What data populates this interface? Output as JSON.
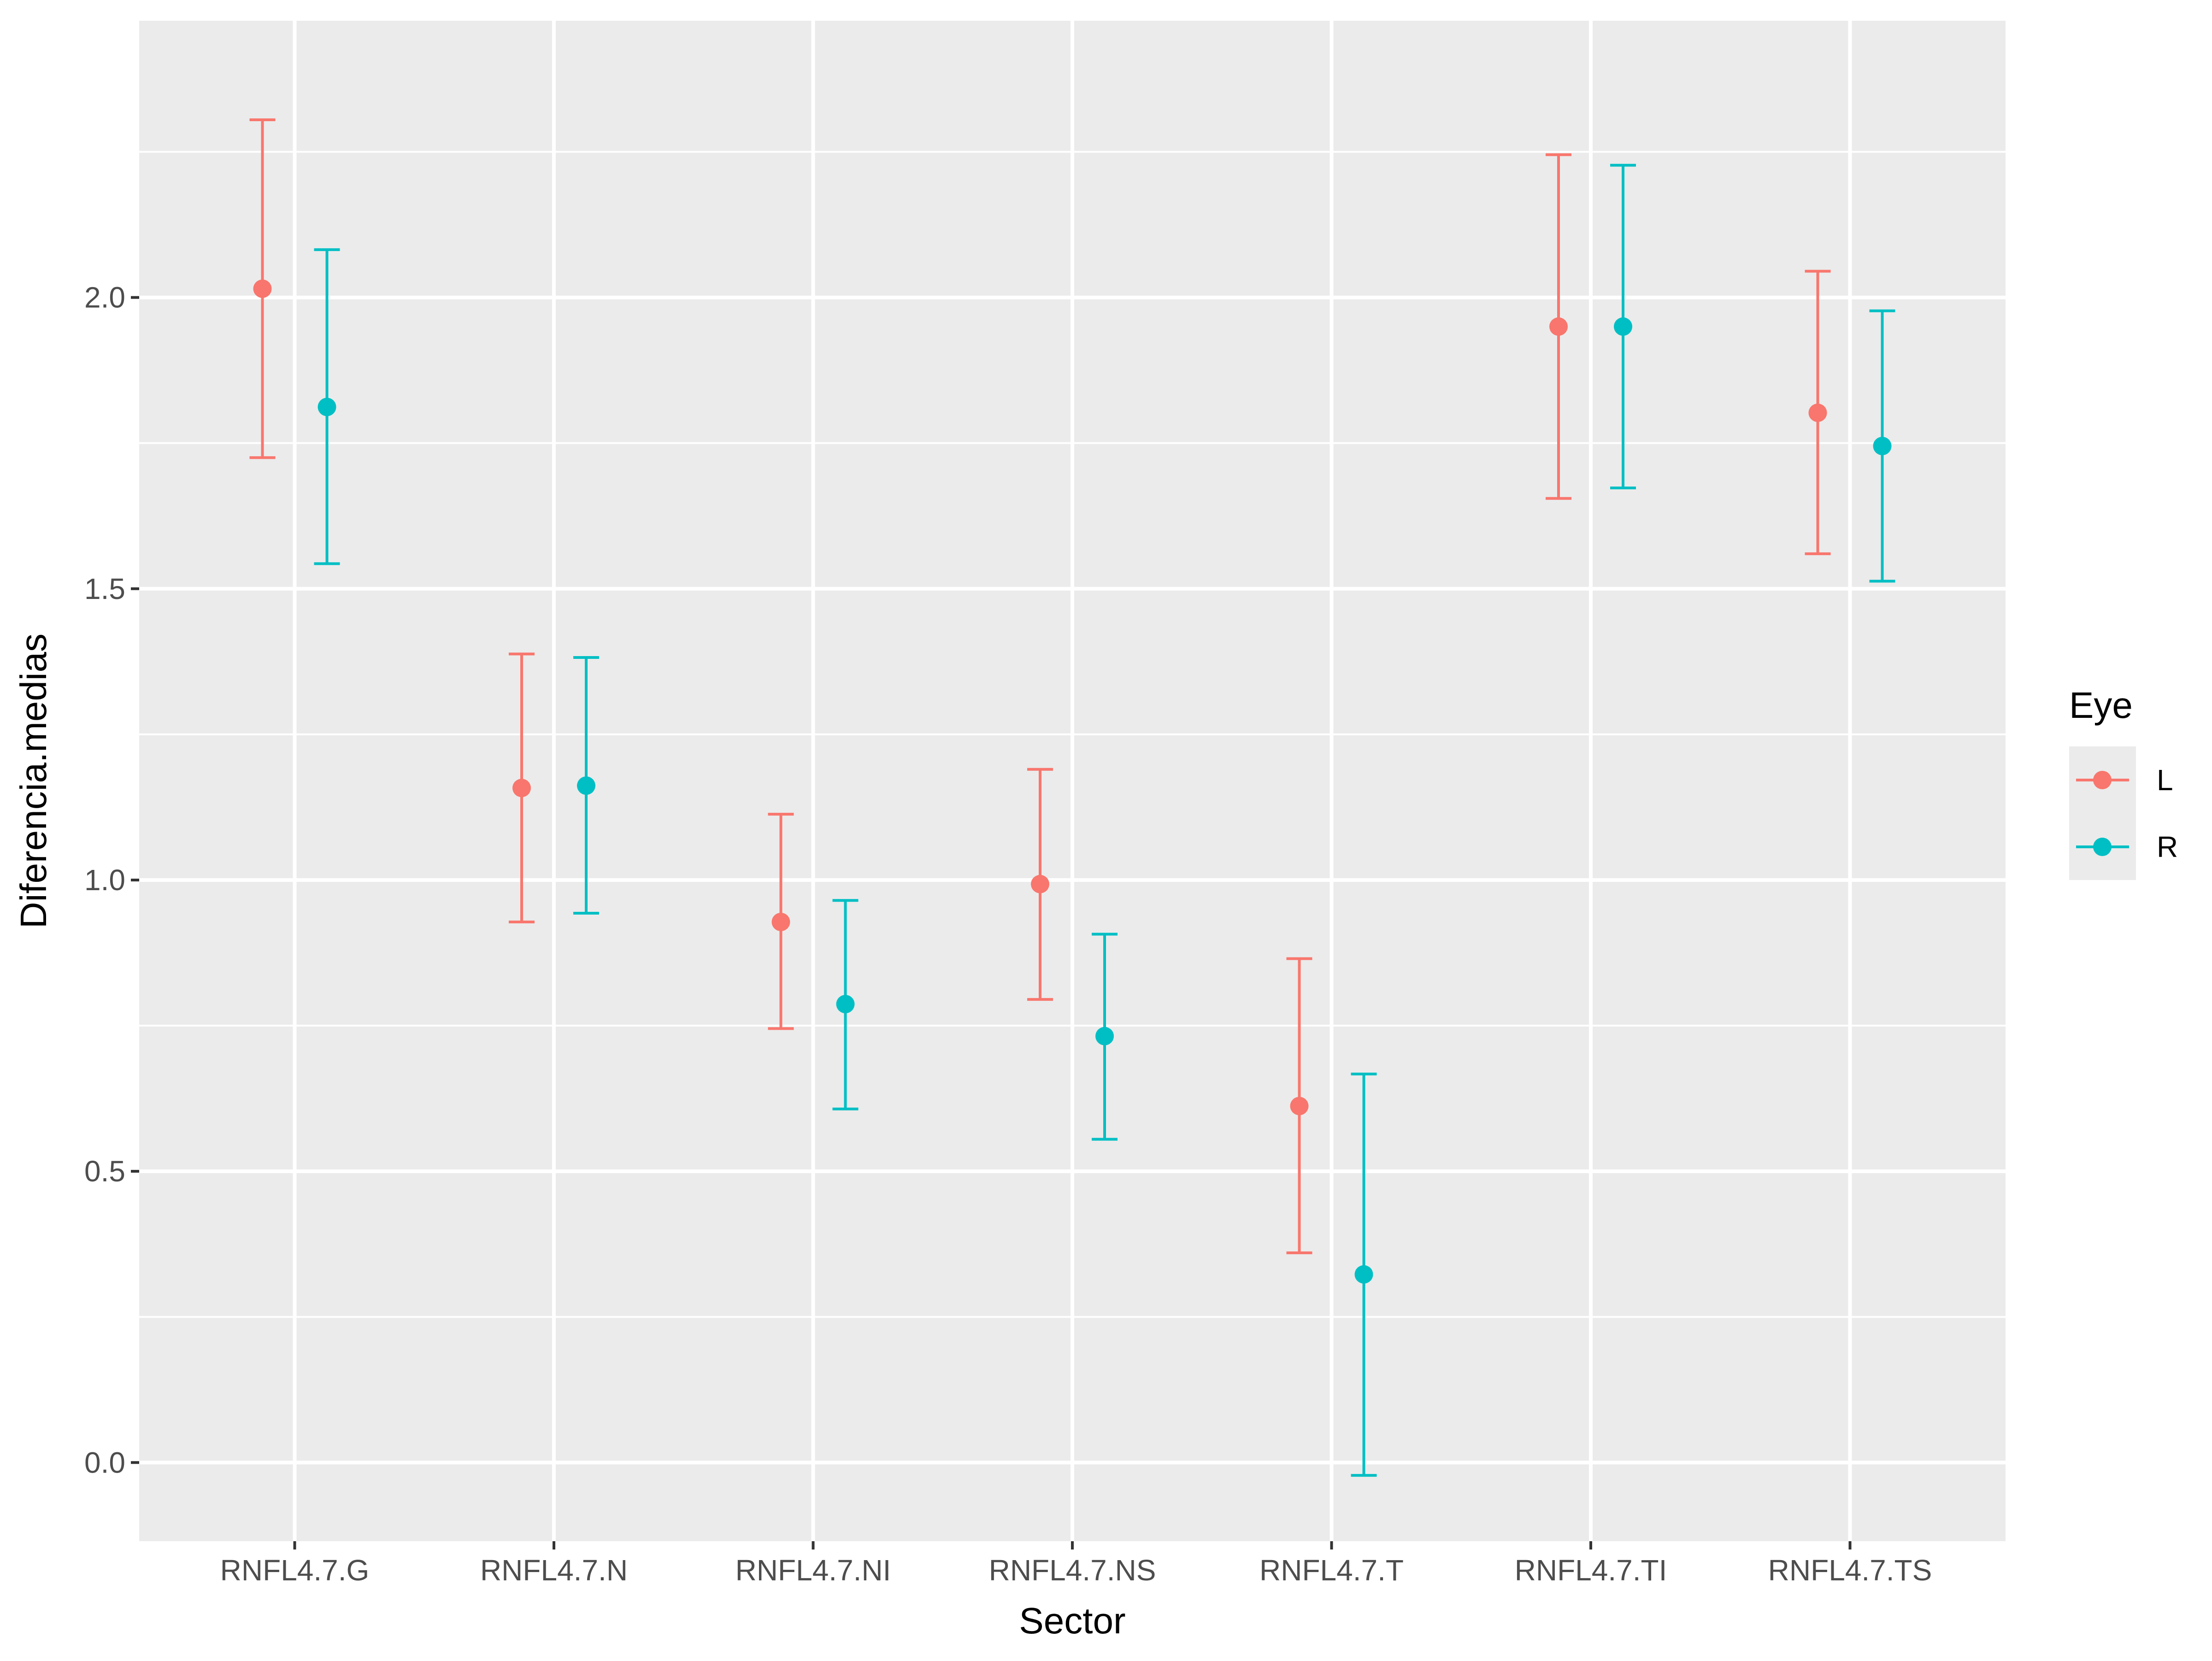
{
  "chart_data": {
    "type": "scatter",
    "subtype": "pointrange-errorbar",
    "title": "",
    "xlabel": "Sector",
    "ylabel": "Diferencia.medias",
    "categories": [
      "RNFL4.7.G",
      "RNFL4.7.N",
      "RNFL4.7.NI",
      "RNFL4.7.NS",
      "RNFL4.7.T",
      "RNFL4.7.TI",
      "RNFL4.7.TS"
    ],
    "ylim": [
      -0.135,
      2.475
    ],
    "yticks": [
      0.0,
      0.5,
      1.0,
      1.5,
      2.0
    ],
    "ytick_labels": [
      "0.0",
      "0.5",
      "1.0",
      "1.5",
      "2.0"
    ],
    "grid": true,
    "legend": {
      "title": "Eye",
      "position": "right"
    },
    "series": [
      {
        "name": "L",
        "color": "#F8766D",
        "values": [
          2.015,
          1.158,
          0.928,
          0.993,
          0.612,
          1.95,
          1.802
        ],
        "lower": [
          1.725,
          0.928,
          0.745,
          0.795,
          0.36,
          1.655,
          1.56
        ],
        "upper": [
          2.305,
          1.388,
          1.113,
          1.19,
          0.865,
          2.245,
          2.045
        ]
      },
      {
        "name": "R",
        "color": "#00BFC4",
        "values": [
          1.812,
          1.162,
          0.787,
          0.732,
          0.323,
          1.95,
          1.745
        ],
        "lower": [
          1.543,
          0.943,
          0.607,
          0.555,
          -0.022,
          1.673,
          1.513
        ],
        "upper": [
          2.082,
          1.382,
          0.965,
          0.907,
          0.667,
          2.227,
          1.977
        ]
      }
    ]
  }
}
